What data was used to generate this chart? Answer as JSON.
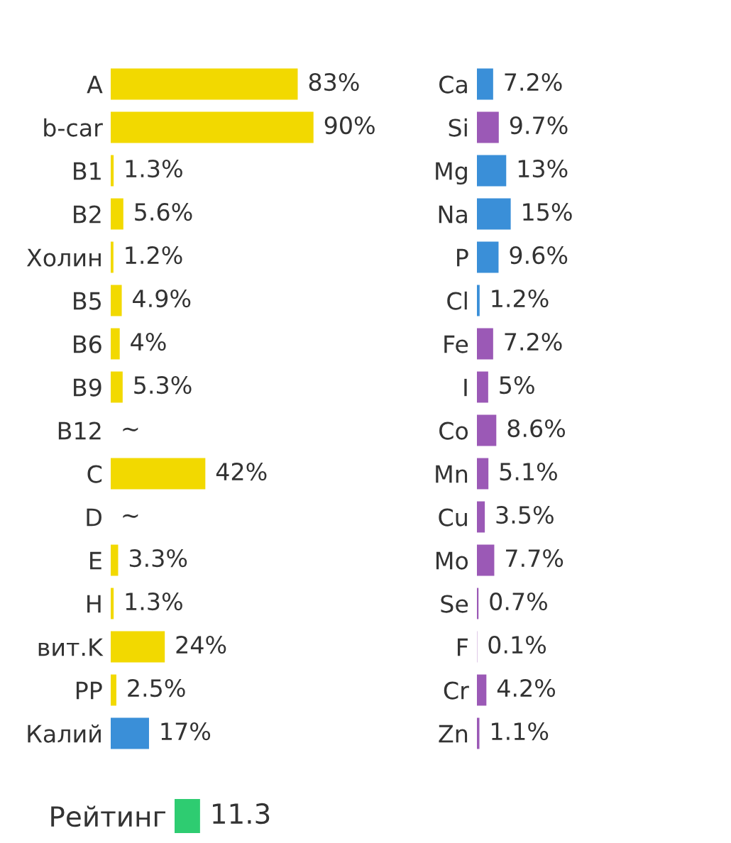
{
  "chart_data": [
    {
      "type": "bar",
      "orientation": "horizontal",
      "categories": [
        "A",
        "b-car",
        "B1",
        "B2",
        "Холин",
        "B5",
        "B6",
        "B9",
        "B12",
        "C",
        "D",
        "E",
        "H",
        "вит.K",
        "PP",
        "Калий"
      ],
      "values": [
        83,
        90,
        1.3,
        5.6,
        1.2,
        4.9,
        4,
        5.3,
        null,
        42,
        null,
        3.3,
        1.3,
        24,
        2.5,
        17
      ],
      "colors": [
        "#f2d900",
        "#f2d900",
        "#f2d900",
        "#f2d900",
        "#f2d900",
        "#f2d900",
        "#f2d900",
        "#f2d900",
        "#f2d900",
        "#f2d900",
        "#f2d900",
        "#f2d900",
        "#f2d900",
        "#f2d900",
        "#f2d900",
        "#3a8fd8"
      ],
      "value_labels": [
        "83%",
        "90%",
        "1.3%",
        "5.6%",
        "1.2%",
        "4.9%",
        "4%",
        "5.3%",
        "~",
        "42%",
        "~",
        "3.3%",
        "1.3%",
        "24%",
        "2.5%",
        "17%"
      ],
      "tick_labels": "y"
    },
    {
      "type": "bar",
      "orientation": "horizontal",
      "categories": [
        "Ca",
        "Si",
        "Mg",
        "Na",
        "P",
        "Cl",
        "Fe",
        "I",
        "Co",
        "Mn",
        "Cu",
        "Mo",
        "Se",
        "F",
        "Cr",
        "Zn"
      ],
      "values": [
        7.2,
        9.7,
        13,
        15,
        9.6,
        1.2,
        7.2,
        5,
        8.6,
        5.1,
        3.5,
        7.7,
        0.7,
        0.1,
        4.2,
        1.1
      ],
      "colors": [
        "#3a8fd8",
        "#9b59b6",
        "#3a8fd8",
        "#3a8fd8",
        "#3a8fd8",
        "#3a8fd8",
        "#9b59b6",
        "#9b59b6",
        "#9b59b6",
        "#9b59b6",
        "#9b59b6",
        "#9b59b6",
        "#9b59b6",
        "#9b59b6",
        "#9b59b6",
        "#9b59b6"
      ],
      "value_labels": [
        "7.2%",
        "9.7%",
        "13%",
        "15%",
        "9.6%",
        "1.2%",
        "7.2%",
        "5%",
        "8.6%",
        "5.1%",
        "3.5%",
        "7.7%",
        "0.7%",
        "0.1%",
        "4.2%",
        "1.1%"
      ],
      "tick_labels": "y"
    },
    {
      "type": "bar",
      "orientation": "horizontal",
      "categories": [
        "Рейтинг"
      ],
      "values": [
        11.3
      ],
      "colors": [
        "#2ecc71"
      ],
      "data_labels": true,
      "tick_labels": "y"
    }
  ]
}
